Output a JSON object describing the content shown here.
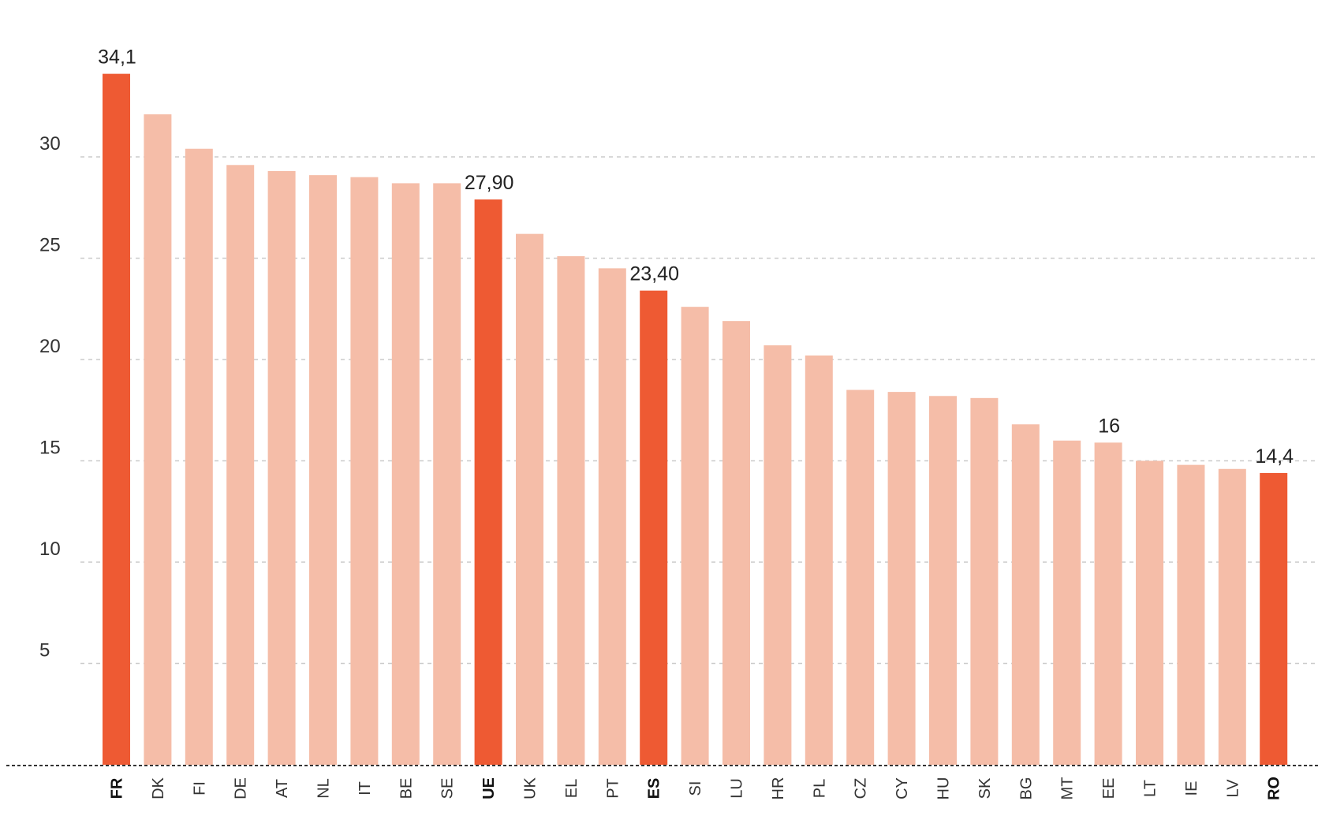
{
  "chart_data": {
    "type": "bar",
    "title": "",
    "xlabel": "",
    "ylabel": "",
    "categories": [
      "FR",
      "DK",
      "FI",
      "DE",
      "AT",
      "NL",
      "IT",
      "BE",
      "SE",
      "UE",
      "UK",
      "EL",
      "PT",
      "ES",
      "SI",
      "LU",
      "HR",
      "PL",
      "CZ",
      "CY",
      "HU",
      "SK",
      "BG",
      "MT",
      "EE",
      "LT",
      "IE",
      "LV",
      "RO"
    ],
    "values": [
      34.1,
      32.1,
      30.4,
      29.6,
      29.3,
      29.1,
      29.0,
      28.7,
      28.7,
      27.9,
      26.2,
      25.1,
      24.5,
      23.4,
      22.6,
      21.9,
      20.7,
      20.2,
      18.5,
      18.4,
      18.2,
      18.1,
      16.8,
      16.0,
      15.9,
      15.0,
      14.8,
      14.6,
      14.4
    ],
    "highlighted": [
      "FR",
      "UE",
      "ES",
      "RO"
    ],
    "data_labels": [
      {
        "category": "FR",
        "text": "34,1"
      },
      {
        "category": "UE",
        "text": "27,90"
      },
      {
        "category": "ES",
        "text": "23,40"
      },
      {
        "category": "EE",
        "text": "16"
      },
      {
        "category": "RO",
        "text": "14,4"
      }
    ],
    "yticks": [
      {
        "value": 5,
        "label": "5"
      },
      {
        "value": 10,
        "label": "10"
      },
      {
        "value": 15,
        "label": "15"
      },
      {
        "value": 20,
        "label": "20"
      },
      {
        "value": 25,
        "label": "25"
      },
      {
        "value": 30,
        "label": "30"
      }
    ],
    "ylim": [
      0,
      36
    ],
    "grid": "horizontal dashed",
    "legend": "none",
    "colors": {
      "highlight": "#EE5A33",
      "normal": "#F5BDA8",
      "grid": "#CCCCCC",
      "axis": "#333333"
    }
  }
}
